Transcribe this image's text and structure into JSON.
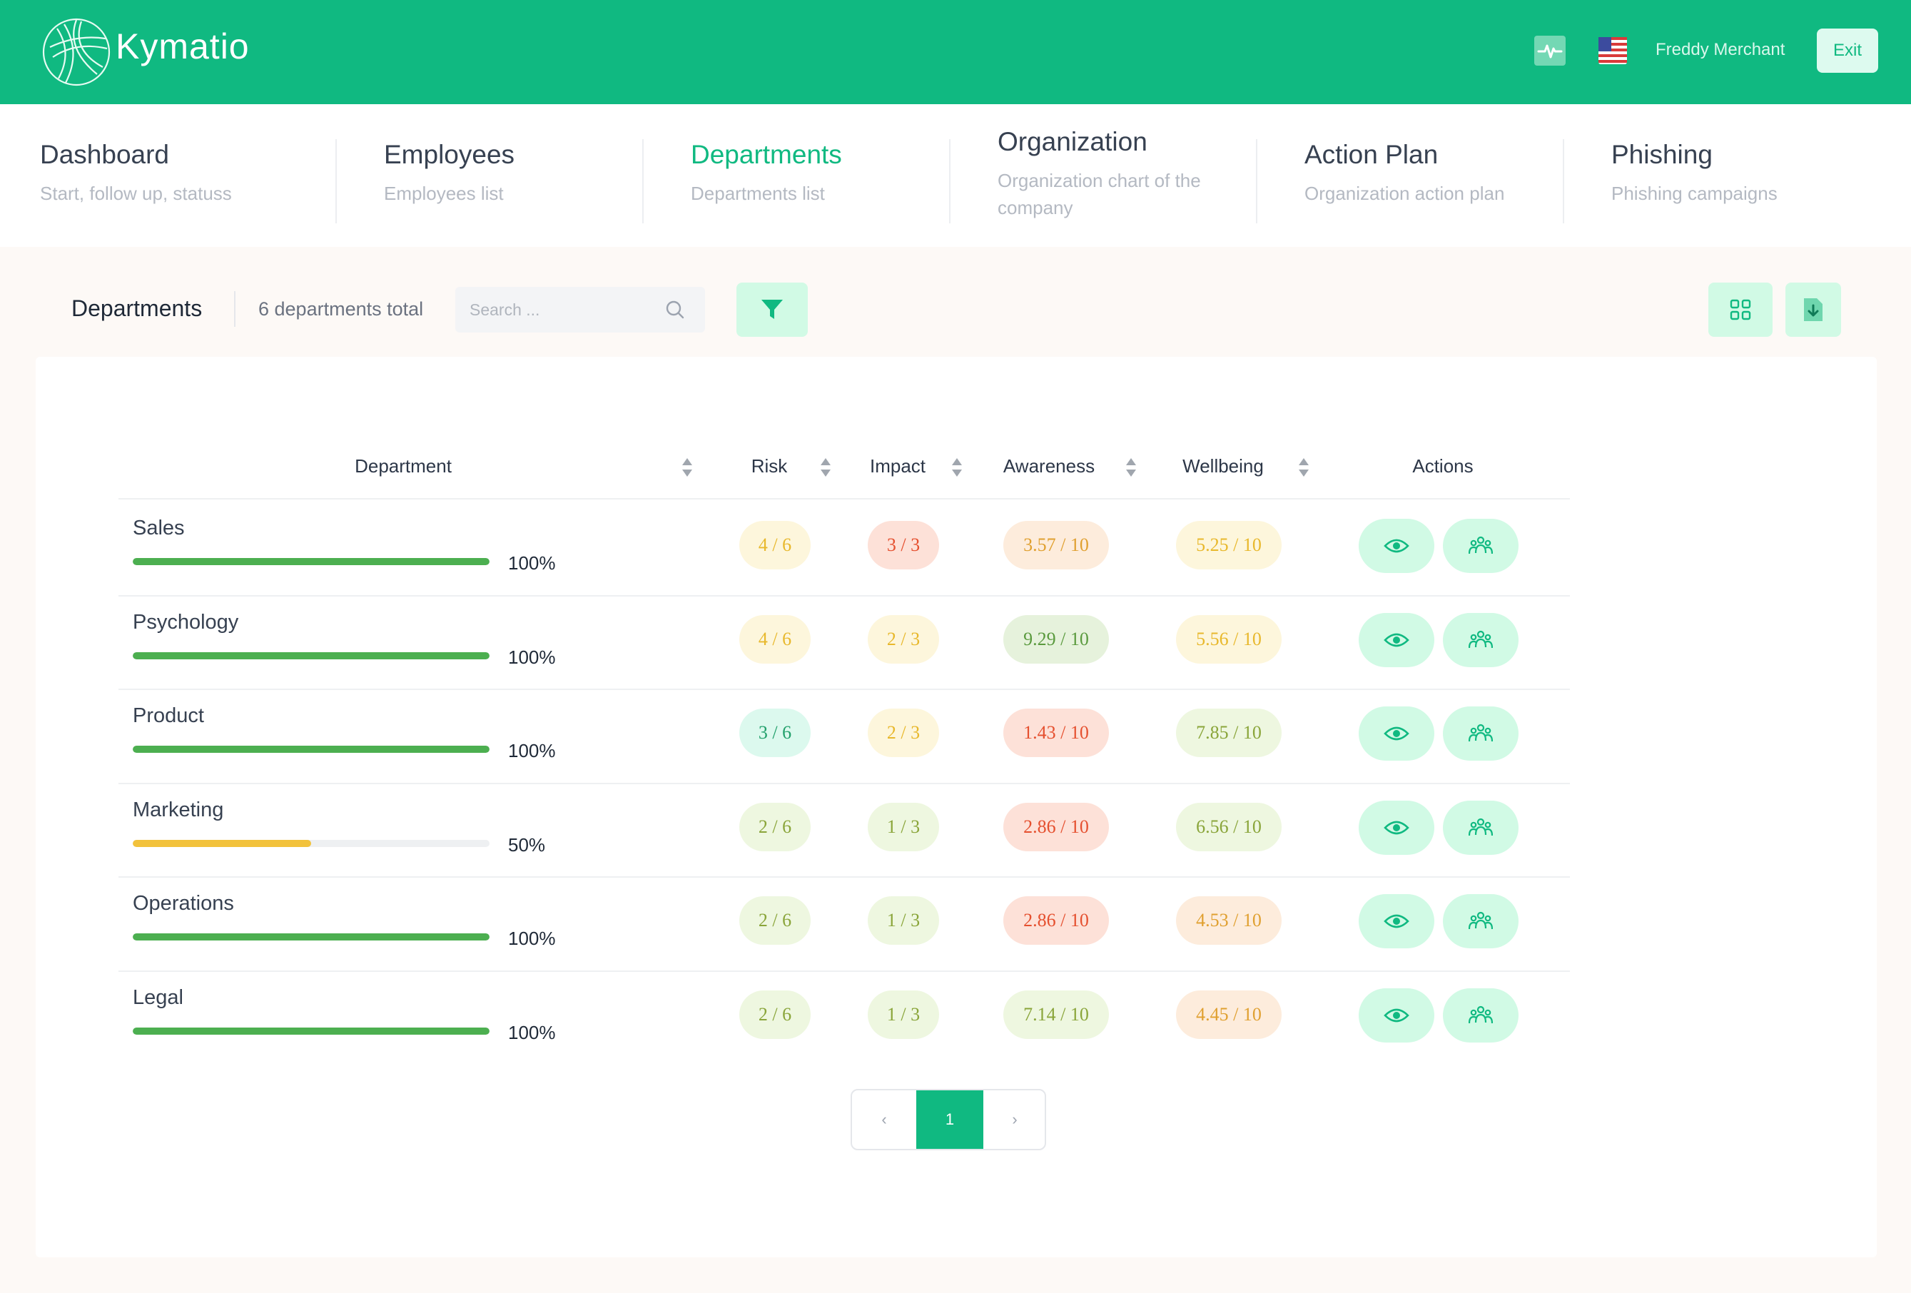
{
  "header": {
    "brand": "Kymatio",
    "user_name": "Freddy Merchant",
    "exit_label": "Exit",
    "icons": [
      "kymatio-logo-icon",
      "activity-pulse-icon",
      "us-flag-icon"
    ]
  },
  "nav": {
    "items": [
      {
        "title": "Dashboard",
        "subtitle": "Start, follow up, statuss"
      },
      {
        "title": "Employees",
        "subtitle": "Employees list"
      },
      {
        "title": "Departments",
        "subtitle": "Departments list"
      },
      {
        "title": "Organization",
        "subtitle": "Organization chart of the company"
      },
      {
        "title": "Action Plan",
        "subtitle": "Organization action plan"
      },
      {
        "title": "Phishing",
        "subtitle": "Phishing campaigns"
      }
    ],
    "active": "Departments"
  },
  "toolbar": {
    "title": "Departments",
    "count": "6 departments total",
    "search_placeholder": "Search ...",
    "icons": [
      "search-icon",
      "filter-icon",
      "grid-view-icon",
      "export-file-icon"
    ]
  },
  "table": {
    "columns": {
      "department": "Department",
      "risk": "Risk",
      "impact": "Impact",
      "awareness": "Awareness",
      "wellbeing": "Wellbeing",
      "actions": "Actions"
    },
    "action_icons": [
      "view-eye-icon",
      "group-people-icon"
    ],
    "rows": [
      {
        "name": "Sales",
        "progress": 1.0,
        "pct": "100%",
        "risk": "4 / 6",
        "impact": "3 / 3",
        "awareness": "3.57 / 10",
        "wellbeing": "5.25 / 10"
      },
      {
        "name": "Psychology",
        "progress": 1.0,
        "pct": "100%",
        "risk": "4 / 6",
        "impact": "2 / 3",
        "awareness": "9.29 / 10",
        "wellbeing": "5.56 / 10"
      },
      {
        "name": "Product",
        "progress": 1.0,
        "pct": "100%",
        "risk": "3 / 6",
        "impact": "2 / 3",
        "awareness": "1.43 / 10",
        "wellbeing": "7.85 / 10"
      },
      {
        "name": "Marketing",
        "progress": 0.5,
        "pct": "50%",
        "risk": "2 / 6",
        "impact": "1 / 3",
        "awareness": "2.86 / 10",
        "wellbeing": "6.56 / 10"
      },
      {
        "name": "Operations",
        "progress": 1.0,
        "pct": "100%",
        "risk": "2 / 6",
        "impact": "1 / 3",
        "awareness": "2.86 / 10",
        "wellbeing": "4.53 / 10"
      },
      {
        "name": "Legal",
        "progress": 1.0,
        "pct": "100%",
        "risk": "2 / 6",
        "impact": "1 / 3",
        "awareness": "7.14 / 10",
        "wellbeing": "4.45 / 10"
      }
    ]
  },
  "pager": {
    "prev": "‹",
    "current": "1",
    "next": "›"
  },
  "colors": {
    "accent": "#10b981",
    "progress_full": "#4caf50",
    "progress_half": "#f2c23c",
    "badge_yellow_bg": "#fdf6dc",
    "badge_yellow_fg": "#e8b82c",
    "badge_orange_bg": "#fdecdc",
    "badge_orange_fg": "#e0a030",
    "badge_red_bg": "#fde1d8",
    "badge_red_fg": "#e5502f",
    "badge_green_bg": "#dcf9ee",
    "badge_green_fg": "#22a06b",
    "badge_lime_bg": "#eef7e0",
    "badge_lime_fg": "#8aa53a",
    "badge_olive_bg": "#e6f2dc",
    "badge_olive_fg": "#5a9a3e"
  }
}
